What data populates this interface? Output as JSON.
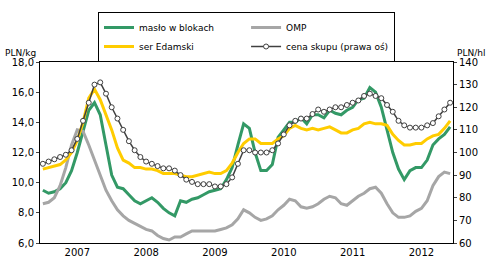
{
  "chart_data": {
    "type": "line",
    "y_label": "PLN/kg",
    "y2_label": "PLN/hl",
    "categories": [
      null,
      null,
      null,
      null,
      null,
      null,
      "2007",
      null,
      null,
      null,
      null,
      null,
      null,
      null,
      null,
      null,
      null,
      null,
      "2008",
      null,
      null,
      null,
      null,
      null,
      null,
      null,
      null,
      null,
      null,
      null,
      "2009",
      null,
      null,
      null,
      null,
      null,
      null,
      null,
      null,
      null,
      null,
      null,
      "2010",
      null,
      null,
      null,
      null,
      null,
      null,
      null,
      null,
      null,
      null,
      null,
      "2011",
      null,
      null,
      null,
      null,
      null,
      null,
      null,
      null,
      null,
      null,
      null,
      "2012",
      null,
      null,
      null,
      null,
      null
    ],
    "ylim": [
      6,
      18
    ],
    "yticks": [
      {
        "value": 6,
        "label": "6,0"
      },
      {
        "value": 8,
        "label": "8,0"
      },
      {
        "value": 10,
        "label": "10,0"
      },
      {
        "value": 12,
        "label": "12,0"
      },
      {
        "value": 14,
        "label": "14,0"
      },
      {
        "value": 16,
        "label": "16,0"
      },
      {
        "value": 18,
        "label": "18,0"
      }
    ],
    "y2lim": [
      60,
      140
    ],
    "y2ticks": [
      60,
      70,
      80,
      90,
      100,
      110,
      120,
      130,
      140
    ],
    "grid": false,
    "legend": "top",
    "series": [
      {
        "name": "masło w blokach",
        "color": "#339966",
        "line_style": "solid",
        "values": [
          9.5,
          9.3,
          9.4,
          9.6,
          10.0,
          10.8,
          12.0,
          13.5,
          14.8,
          15.3,
          14.5,
          12.5,
          10.5,
          9.7,
          9.6,
          9.2,
          8.8,
          8.6,
          8.8,
          9.0,
          8.7,
          8.3,
          8.0,
          7.8,
          8.8,
          8.7,
          8.9,
          9.0,
          9.2,
          9.4,
          9.5,
          9.6,
          10.2,
          11.0,
          12.5,
          13.9,
          13.6,
          12.0,
          10.8,
          10.8,
          11.2,
          13.0,
          13.5,
          14.0,
          14.0,
          14.3,
          13.9,
          14.5,
          14.5,
          14.3,
          14.8,
          14.6,
          14.5,
          14.8,
          15.0,
          15.5,
          15.6,
          16.3,
          16.0,
          15.0,
          13.5,
          12.0,
          10.9,
          10.2,
          10.8,
          11.0,
          11.0,
          11.5,
          12.5,
          12.9,
          13.2,
          13.7
        ]
      },
      {
        "name": "OMP",
        "color": "#a6a6a6",
        "line_style": "solid",
        "values": [
          8.6,
          8.7,
          9.0,
          9.8,
          11.0,
          12.5,
          13.5,
          13.4,
          12.5,
          11.5,
          10.5,
          9.5,
          8.8,
          8.2,
          7.8,
          7.5,
          7.3,
          7.1,
          6.9,
          6.8,
          6.5,
          6.3,
          6.2,
          6.4,
          6.4,
          6.6,
          6.8,
          6.8,
          6.8,
          6.8,
          6.8,
          6.9,
          7.0,
          7.2,
          7.6,
          8.2,
          8.0,
          7.7,
          7.5,
          7.6,
          7.8,
          8.2,
          8.5,
          8.9,
          8.8,
          8.4,
          8.3,
          8.4,
          8.6,
          8.9,
          9.1,
          9.0,
          8.6,
          8.5,
          8.8,
          9.1,
          9.3,
          9.6,
          9.7,
          9.3,
          8.6,
          8.0,
          7.7,
          7.7,
          7.8,
          8.1,
          8.3,
          8.8,
          9.8,
          10.4,
          10.7,
          10.6
        ]
      },
      {
        "name": "ser Edamski",
        "color": "#ffcc00",
        "line_style": "solid",
        "values": [
          10.9,
          11.0,
          11.1,
          11.2,
          11.5,
          12.0,
          12.8,
          14.0,
          15.6,
          16.2,
          15.5,
          14.5,
          13.5,
          12.3,
          11.5,
          11.3,
          11.0,
          11.0,
          10.9,
          10.9,
          10.8,
          10.6,
          10.6,
          10.6,
          10.5,
          10.4,
          10.4,
          10.5,
          10.6,
          10.7,
          10.6,
          10.6,
          10.8,
          11.3,
          12.0,
          12.6,
          12.9,
          12.9,
          12.6,
          12.6,
          12.6,
          12.9,
          13.1,
          13.6,
          13.8,
          13.6,
          13.5,
          13.6,
          13.5,
          13.6,
          13.7,
          13.5,
          13.3,
          13.3,
          13.5,
          13.6,
          13.9,
          14.0,
          13.9,
          13.9,
          13.8,
          13.2,
          12.8,
          12.5,
          12.5,
          12.6,
          12.6,
          12.9,
          13.1,
          13.2,
          13.6,
          14.1
        ]
      },
      {
        "name": "cena skupu (prawa oś)",
        "color": "#404040",
        "line_style": "solid",
        "marker": "circle",
        "axis": "y2",
        "values": [
          95,
          96,
          97,
          98,
          99,
          101,
          106,
          114,
          122,
          130,
          131,
          126,
          120,
          115,
          110,
          105,
          101,
          98,
          96,
          95,
          94,
          93,
          93,
          92,
          90,
          88,
          87,
          86,
          86,
          86,
          85,
          85,
          86,
          89,
          95,
          101,
          101,
          100,
          100,
          100,
          101,
          104,
          108,
          112,
          114,
          115,
          115,
          117,
          119,
          118,
          119,
          120,
          120,
          121,
          122,
          123,
          125,
          126,
          125,
          124,
          121,
          118,
          114,
          112,
          111,
          111,
          111,
          112,
          113,
          116,
          119,
          122
        ]
      }
    ]
  }
}
